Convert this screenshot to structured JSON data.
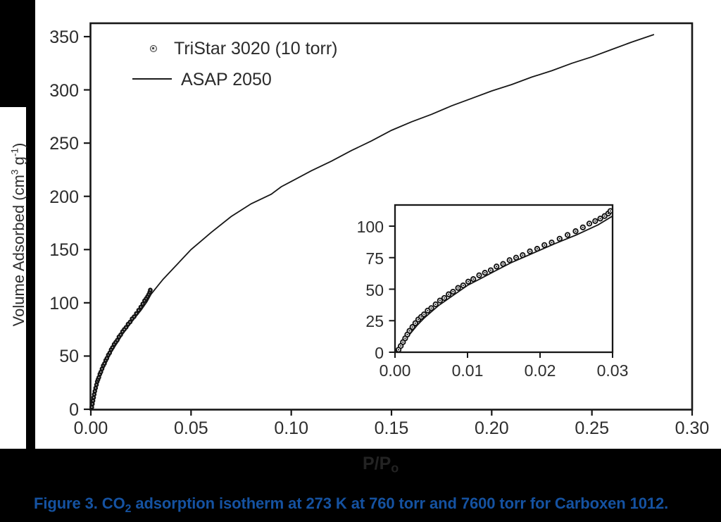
{
  "figure": {
    "caption_label": "Figure 3",
    "caption_mid": ". CO",
    "caption_sub": "2",
    "caption_rest": " adsorption isotherm at 273 K at 760 torr and 7600 torr for Carboxen 1012."
  },
  "axes": {
    "y_title_part1": "Volume Adsorbed (cm",
    "y_title_sup1": "3",
    "y_title_part2": " g",
    "y_title_sup2": "-1",
    "y_title_part3": ")",
    "x_title_main": "P/P",
    "x_title_sub": "o"
  },
  "colors": {
    "ink": "#171717",
    "tick_text": "#2d2d2d",
    "caption_blue": "#1552a1",
    "x_title_gray": "#232323",
    "background_black": "#000000",
    "plot_white": "#ffffff"
  },
  "chart_data": {
    "type": "scatter",
    "title": "",
    "xlabel": "P/Po",
    "ylabel": "Volume Adsorbed (cm3 g-1)",
    "legend": [
      {
        "label": "TriStar 3020 (10 torr)",
        "marker": "open-circle"
      },
      {
        "label": "ASAP 2050",
        "marker": "line"
      }
    ],
    "main_axis": {
      "xlim": [
        0,
        0.3
      ],
      "ylim": [
        0,
        350
      ],
      "grid": false,
      "x_ticks": [
        {
          "p": 0.0,
          "label": "0.00"
        },
        {
          "p": 0.05,
          "label": "0.05"
        },
        {
          "p": 0.1,
          "label": "0.10"
        },
        {
          "p": 0.15,
          "label": "0.15"
        },
        {
          "p": 0.2,
          "label": "0.20"
        },
        {
          "p": 0.25,
          "label": "0.25"
        },
        {
          "p": 0.3,
          "label": "0.30"
        }
      ],
      "y_ticks": [
        {
          "v": 0,
          "label": "0"
        },
        {
          "v": 50,
          "label": "50"
        },
        {
          "v": 100,
          "label": "100"
        },
        {
          "v": 150,
          "label": "150"
        },
        {
          "v": 200,
          "label": "200"
        },
        {
          "v": 250,
          "label": "250"
        },
        {
          "v": 300,
          "label": "300"
        },
        {
          "v": 350,
          "label": "350"
        }
      ]
    },
    "inset_axis": {
      "xlim": [
        0,
        0.03
      ],
      "ylim": [
        0,
        117
      ],
      "grid": false,
      "x_ticks": [
        {
          "p": 0.0,
          "label": "0.00"
        },
        {
          "p": 0.01,
          "label": "0.01"
        },
        {
          "p": 0.02,
          "label": "0.02"
        },
        {
          "p": 0.03,
          "label": "0.03"
        }
      ],
      "y_ticks": [
        {
          "v": 0,
          "label": "0"
        },
        {
          "v": 25,
          "label": "25"
        },
        {
          "v": 50,
          "label": "50"
        },
        {
          "v": 75,
          "label": "75"
        },
        {
          "v": 100,
          "label": "100"
        }
      ]
    },
    "series": [
      {
        "name": "TriStar 3020 (10 torr)",
        "type": "scatter",
        "points": [
          [
            0.0005,
            2
          ],
          [
            0.0008,
            5
          ],
          [
            0.0011,
            8
          ],
          [
            0.0014,
            11
          ],
          [
            0.0017,
            14
          ],
          [
            0.002,
            17
          ],
          [
            0.0024,
            20
          ],
          [
            0.0028,
            23
          ],
          [
            0.0032,
            26
          ],
          [
            0.0036,
            28
          ],
          [
            0.004,
            30
          ],
          [
            0.0045,
            33
          ],
          [
            0.005,
            35
          ],
          [
            0.0056,
            38
          ],
          [
            0.0062,
            41
          ],
          [
            0.0068,
            43
          ],
          [
            0.0074,
            46
          ],
          [
            0.008,
            48
          ],
          [
            0.0087,
            51
          ],
          [
            0.0094,
            53
          ],
          [
            0.0101,
            56
          ],
          [
            0.0108,
            58
          ],
          [
            0.0116,
            61
          ],
          [
            0.0124,
            63
          ],
          [
            0.0132,
            65
          ],
          [
            0.014,
            68
          ],
          [
            0.0149,
            70
          ],
          [
            0.0158,
            73
          ],
          [
            0.0167,
            75
          ],
          [
            0.0176,
            77
          ],
          [
            0.0186,
            80
          ],
          [
            0.0196,
            82
          ],
          [
            0.0206,
            85
          ],
          [
            0.0216,
            87
          ],
          [
            0.0227,
            90
          ],
          [
            0.0238,
            93
          ],
          [
            0.0249,
            96
          ],
          [
            0.0259,
            99
          ],
          [
            0.0268,
            102
          ],
          [
            0.0276,
            104
          ],
          [
            0.0283,
            106
          ],
          [
            0.0289,
            108
          ],
          [
            0.0294,
            110
          ],
          [
            0.0297,
            112
          ]
        ]
      },
      {
        "name": "ASAP 2050",
        "type": "line",
        "points": [
          [
            0,
            0
          ],
          [
            0.001,
            7
          ],
          [
            0.002,
            14
          ],
          [
            0.003,
            21
          ],
          [
            0.004,
            27
          ],
          [
            0.005,
            32
          ],
          [
            0.006,
            37
          ],
          [
            0.007,
            41
          ],
          [
            0.008,
            45
          ],
          [
            0.009,
            49
          ],
          [
            0.01,
            53
          ],
          [
            0.012,
            59
          ],
          [
            0.014,
            65
          ],
          [
            0.016,
            71
          ],
          [
            0.018,
            76
          ],
          [
            0.02,
            81
          ],
          [
            0.022,
            86
          ],
          [
            0.025,
            93
          ],
          [
            0.028,
            101
          ],
          [
            0.03,
            108
          ],
          [
            0.033,
            115
          ],
          [
            0.036,
            122
          ],
          [
            0.04,
            130
          ],
          [
            0.045,
            140
          ],
          [
            0.05,
            150
          ],
          [
            0.055,
            158
          ],
          [
            0.06,
            166
          ],
          [
            0.07,
            181
          ],
          [
            0.08,
            193
          ],
          [
            0.09,
            202
          ],
          [
            0.095,
            209
          ],
          [
            0.1,
            214
          ],
          [
            0.11,
            224
          ],
          [
            0.12,
            233
          ],
          [
            0.13,
            243
          ],
          [
            0.14,
            252
          ],
          [
            0.15,
            262
          ],
          [
            0.16,
            270
          ],
          [
            0.17,
            277
          ],
          [
            0.18,
            285
          ],
          [
            0.19,
            292
          ],
          [
            0.2,
            299
          ],
          [
            0.21,
            305
          ],
          [
            0.22,
            312
          ],
          [
            0.23,
            318
          ],
          [
            0.24,
            325
          ],
          [
            0.25,
            331
          ],
          [
            0.26,
            338
          ],
          [
            0.27,
            345
          ],
          [
            0.281,
            352
          ]
        ]
      }
    ]
  }
}
